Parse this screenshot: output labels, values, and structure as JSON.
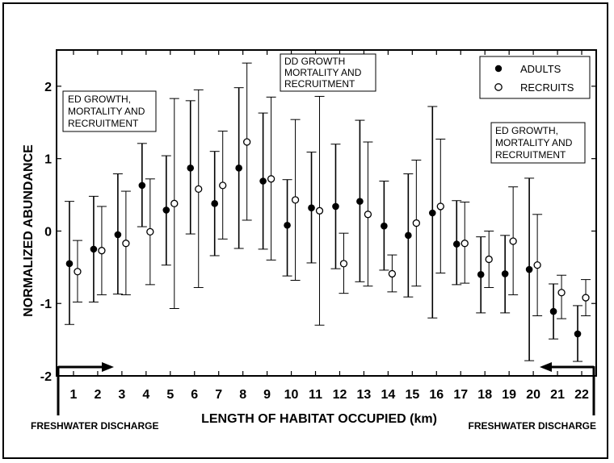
{
  "chart_data": {
    "type": "scatter",
    "title": "",
    "xlabel": "LENGTH OF HABITAT OCCUPIED (km)",
    "ylabel": "NORMALIZED ABUNDANCE",
    "ylim": [
      -2,
      2.5
    ],
    "xlim": [
      0.3,
      22.6
    ],
    "yticks": [
      -2,
      -1,
      0,
      1,
      2
    ],
    "categories": [
      "1",
      "2",
      "3",
      "4",
      "5",
      "6",
      "7",
      "8",
      "9",
      "10",
      "11",
      "12",
      "13",
      "14",
      "15",
      "16",
      "17",
      "18",
      "19",
      "20",
      "21",
      "22"
    ],
    "grid": false,
    "legend_position": "top-right",
    "series": [
      {
        "name": "ADULTS",
        "marker": "filled-circle",
        "color": "#000000",
        "values": [
          -0.45,
          -0.25,
          -0.05,
          0.63,
          0.29,
          0.87,
          0.38,
          0.87,
          0.69,
          0.08,
          0.32,
          0.34,
          0.41,
          0.07,
          -0.06,
          0.25,
          -0.18,
          -0.6,
          -0.59,
          -0.53,
          -1.11,
          -1.42
        ],
        "err_low": [
          -1.29,
          -0.98,
          -0.87,
          0.06,
          -0.47,
          -0.04,
          -0.34,
          -0.24,
          -0.25,
          -0.62,
          -0.44,
          -0.52,
          -0.7,
          -0.54,
          -0.91,
          -1.2,
          -0.74,
          -1.13,
          -1.13,
          -1.79,
          -1.49,
          -1.8
        ],
        "err_high": [
          0.41,
          0.48,
          0.79,
          1.21,
          1.04,
          1.8,
          1.1,
          1.98,
          1.63,
          0.71,
          1.09,
          1.2,
          1.53,
          0.69,
          0.79,
          1.72,
          0.42,
          -0.08,
          -0.06,
          0.73,
          -0.73,
          -1.03
        ]
      },
      {
        "name": "RECRUITS",
        "marker": "open-circle",
        "color": "#000000",
        "values": [
          -0.56,
          -0.27,
          -0.17,
          -0.01,
          0.38,
          0.58,
          0.63,
          1.23,
          0.72,
          0.43,
          0.28,
          -0.45,
          0.23,
          -0.59,
          0.11,
          0.34,
          -0.17,
          -0.39,
          -0.14,
          -0.47,
          -0.85,
          -0.92
        ],
        "err_low": [
          -0.98,
          -0.88,
          -0.88,
          -0.74,
          -1.07,
          -0.78,
          -0.11,
          0.15,
          -0.4,
          -0.68,
          -1.3,
          -0.86,
          -0.76,
          -0.84,
          -0.76,
          -0.58,
          -0.72,
          -0.78,
          -0.88,
          -1.17,
          -1.21,
          -1.17
        ],
        "err_high": [
          -0.13,
          0.34,
          0.55,
          0.72,
          1.83,
          1.95,
          1.38,
          2.32,
          1.85,
          1.54,
          1.86,
          -0.03,
          1.23,
          -0.33,
          0.98,
          1.27,
          0.4,
          0.0,
          0.61,
          0.23,
          -0.61,
          -0.67
        ]
      }
    ],
    "annotations": [
      {
        "lines": [
          "ED GROWTH,",
          "MORTALITY AND",
          "RECRUITMENT"
        ]
      },
      {
        "lines": [
          "DD GROWTH",
          "MORTALITY AND",
          "RECRUITMENT"
        ]
      },
      {
        "lines": [
          "ED GROWTH,",
          "MORTALITY AND",
          "RECRUITMENT"
        ]
      }
    ],
    "side_labels": [
      "FRESHWATER DISCHARGE",
      "FRESHWATER DISCHARGE"
    ]
  }
}
